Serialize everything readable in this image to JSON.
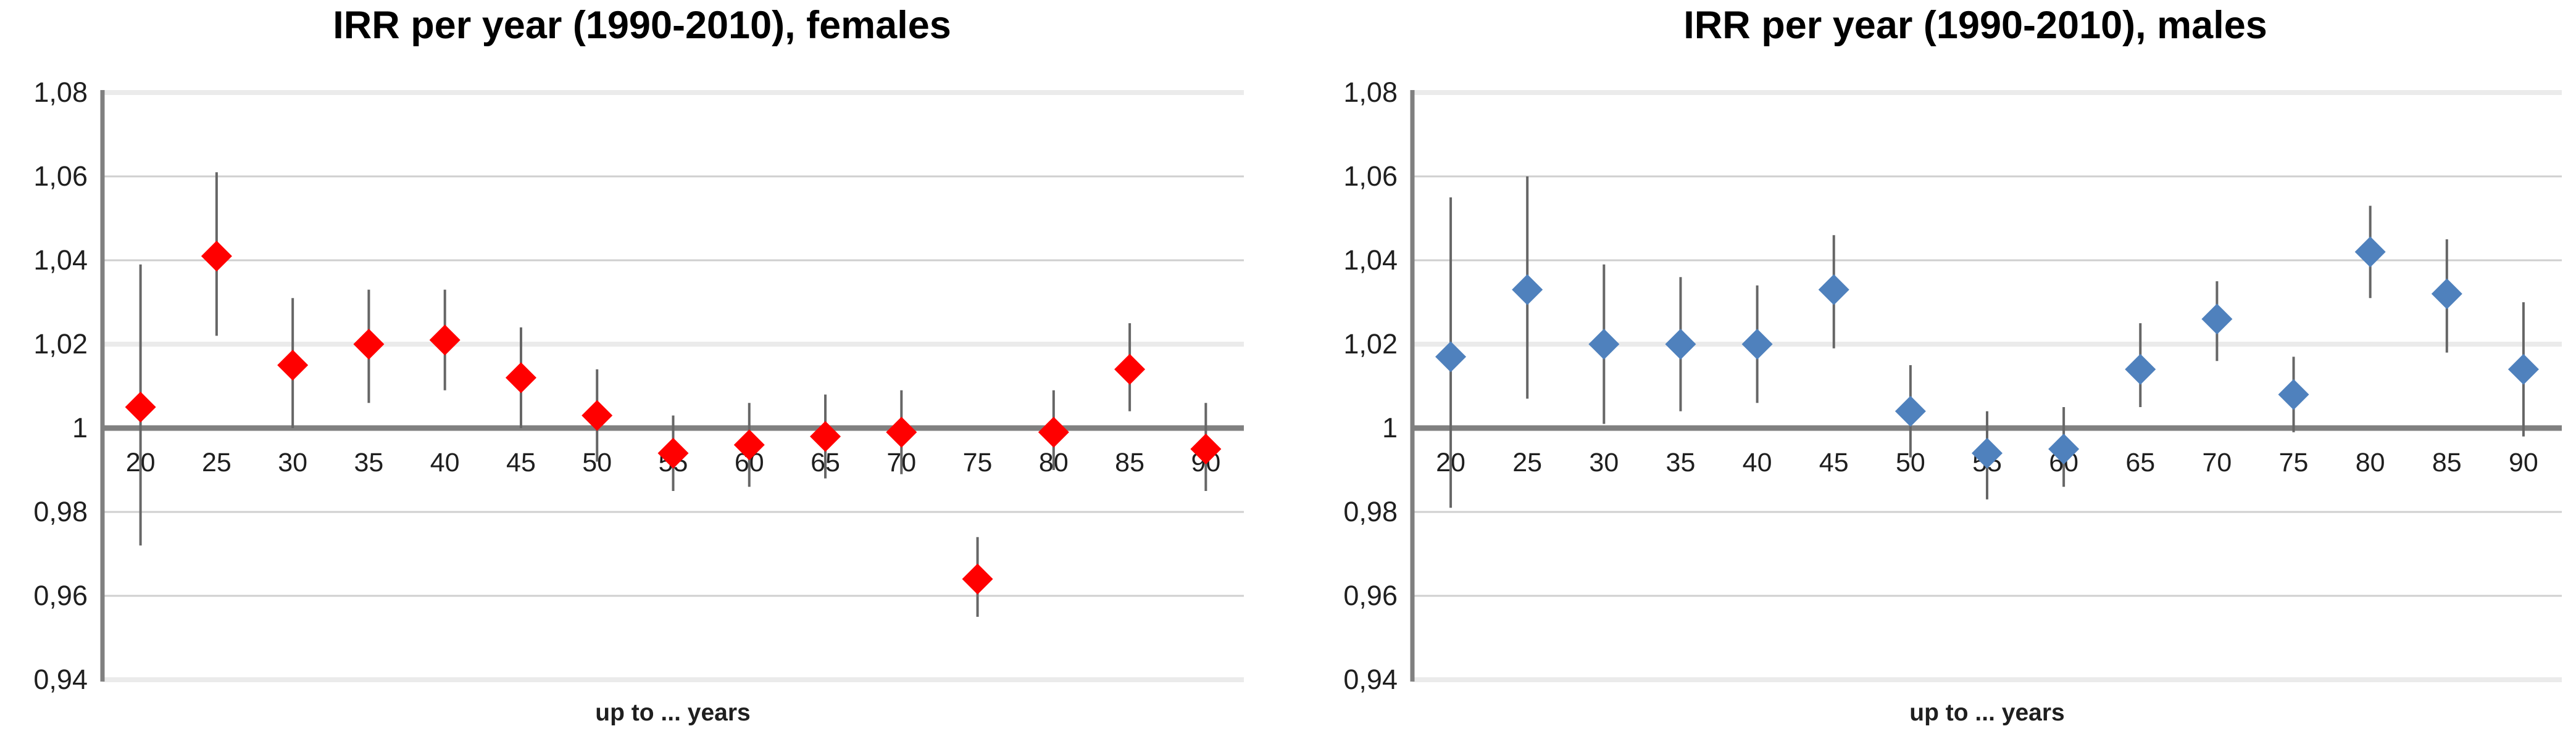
{
  "page": {
    "background_color": "#ffffff"
  },
  "colors": {
    "female_marker": "#FF0000",
    "male_marker": "#4F81BD",
    "error_bar": "#666666",
    "axis_line": "#808080",
    "baseline": "#808080",
    "gridline": "#CFCFCF",
    "gridline_band": "#EBEBEB",
    "tick_text": "#1f1f1f",
    "title_text": "#000000"
  },
  "chart_data": [
    {
      "type": "scatter",
      "title": "IRR per year (1990-2010), females",
      "xlabel": "up to ... years",
      "ylabel": "",
      "marker": "diamond",
      "marker_color": "#FF0000",
      "error_bars": true,
      "grid": true,
      "legend": "none",
      "ylim": [
        0.94,
        1.08
      ],
      "y_ticks": [
        1.08,
        1.06,
        1.04,
        1.02,
        1,
        0.98,
        0.96,
        0.94
      ],
      "y_tick_labels": [
        "1,08",
        "1,06",
        "1,04",
        "1,02",
        "1",
        "0,98",
        "0,96",
        "0,94"
      ],
      "categories": [
        20,
        25,
        30,
        35,
        40,
        45,
        50,
        55,
        60,
        65,
        70,
        75,
        80,
        85,
        90
      ],
      "values": [
        1.005,
        1.041,
        1.015,
        1.02,
        1.021,
        1.012,
        1.003,
        0.994,
        0.996,
        0.998,
        0.999,
        0.964,
        0.999,
        1.014,
        0.995
      ],
      "ci_low": [
        0.972,
        1.022,
        1.0,
        1.006,
        1.009,
        1.0,
        0.992,
        0.985,
        0.986,
        0.988,
        0.989,
        0.955,
        0.99,
        1.004,
        0.985
      ],
      "ci_high": [
        1.039,
        1.061,
        1.031,
        1.033,
        1.033,
        1.024,
        1.014,
        1.003,
        1.006,
        1.008,
        1.009,
        0.974,
        1.009,
        1.025,
        1.006
      ]
    },
    {
      "type": "scatter",
      "title": "IRR per year (1990-2010), males",
      "xlabel": "up to ... years",
      "ylabel": "",
      "marker": "diamond",
      "marker_color": "#4F81BD",
      "error_bars": true,
      "grid": true,
      "legend": "none",
      "ylim": [
        0.94,
        1.08
      ],
      "y_ticks": [
        1.08,
        1.06,
        1.04,
        1.02,
        1,
        0.98,
        0.96,
        0.94
      ],
      "y_tick_labels": [
        "1,08",
        "1,06",
        "1,04",
        "1,02",
        "1",
        "0,98",
        "0,96",
        "0,94"
      ],
      "categories": [
        20,
        25,
        30,
        35,
        40,
        45,
        50,
        55,
        60,
        65,
        70,
        75,
        80,
        85,
        90
      ],
      "values": [
        1.017,
        1.033,
        1.02,
        1.02,
        1.02,
        1.033,
        1.004,
        0.994,
        0.995,
        1.014,
        1.026,
        1.008,
        1.042,
        1.032,
        1.014
      ],
      "ci_low": [
        0.981,
        1.007,
        1.001,
        1.004,
        1.006,
        1.019,
        0.993,
        0.983,
        0.986,
        1.005,
        1.016,
        0.999,
        1.031,
        1.018,
        0.998
      ],
      "ci_high": [
        1.055,
        1.06,
        1.039,
        1.036,
        1.034,
        1.046,
        1.015,
        1.004,
        1.005,
        1.025,
        1.035,
        1.017,
        1.053,
        1.045,
        1.03
      ]
    }
  ]
}
